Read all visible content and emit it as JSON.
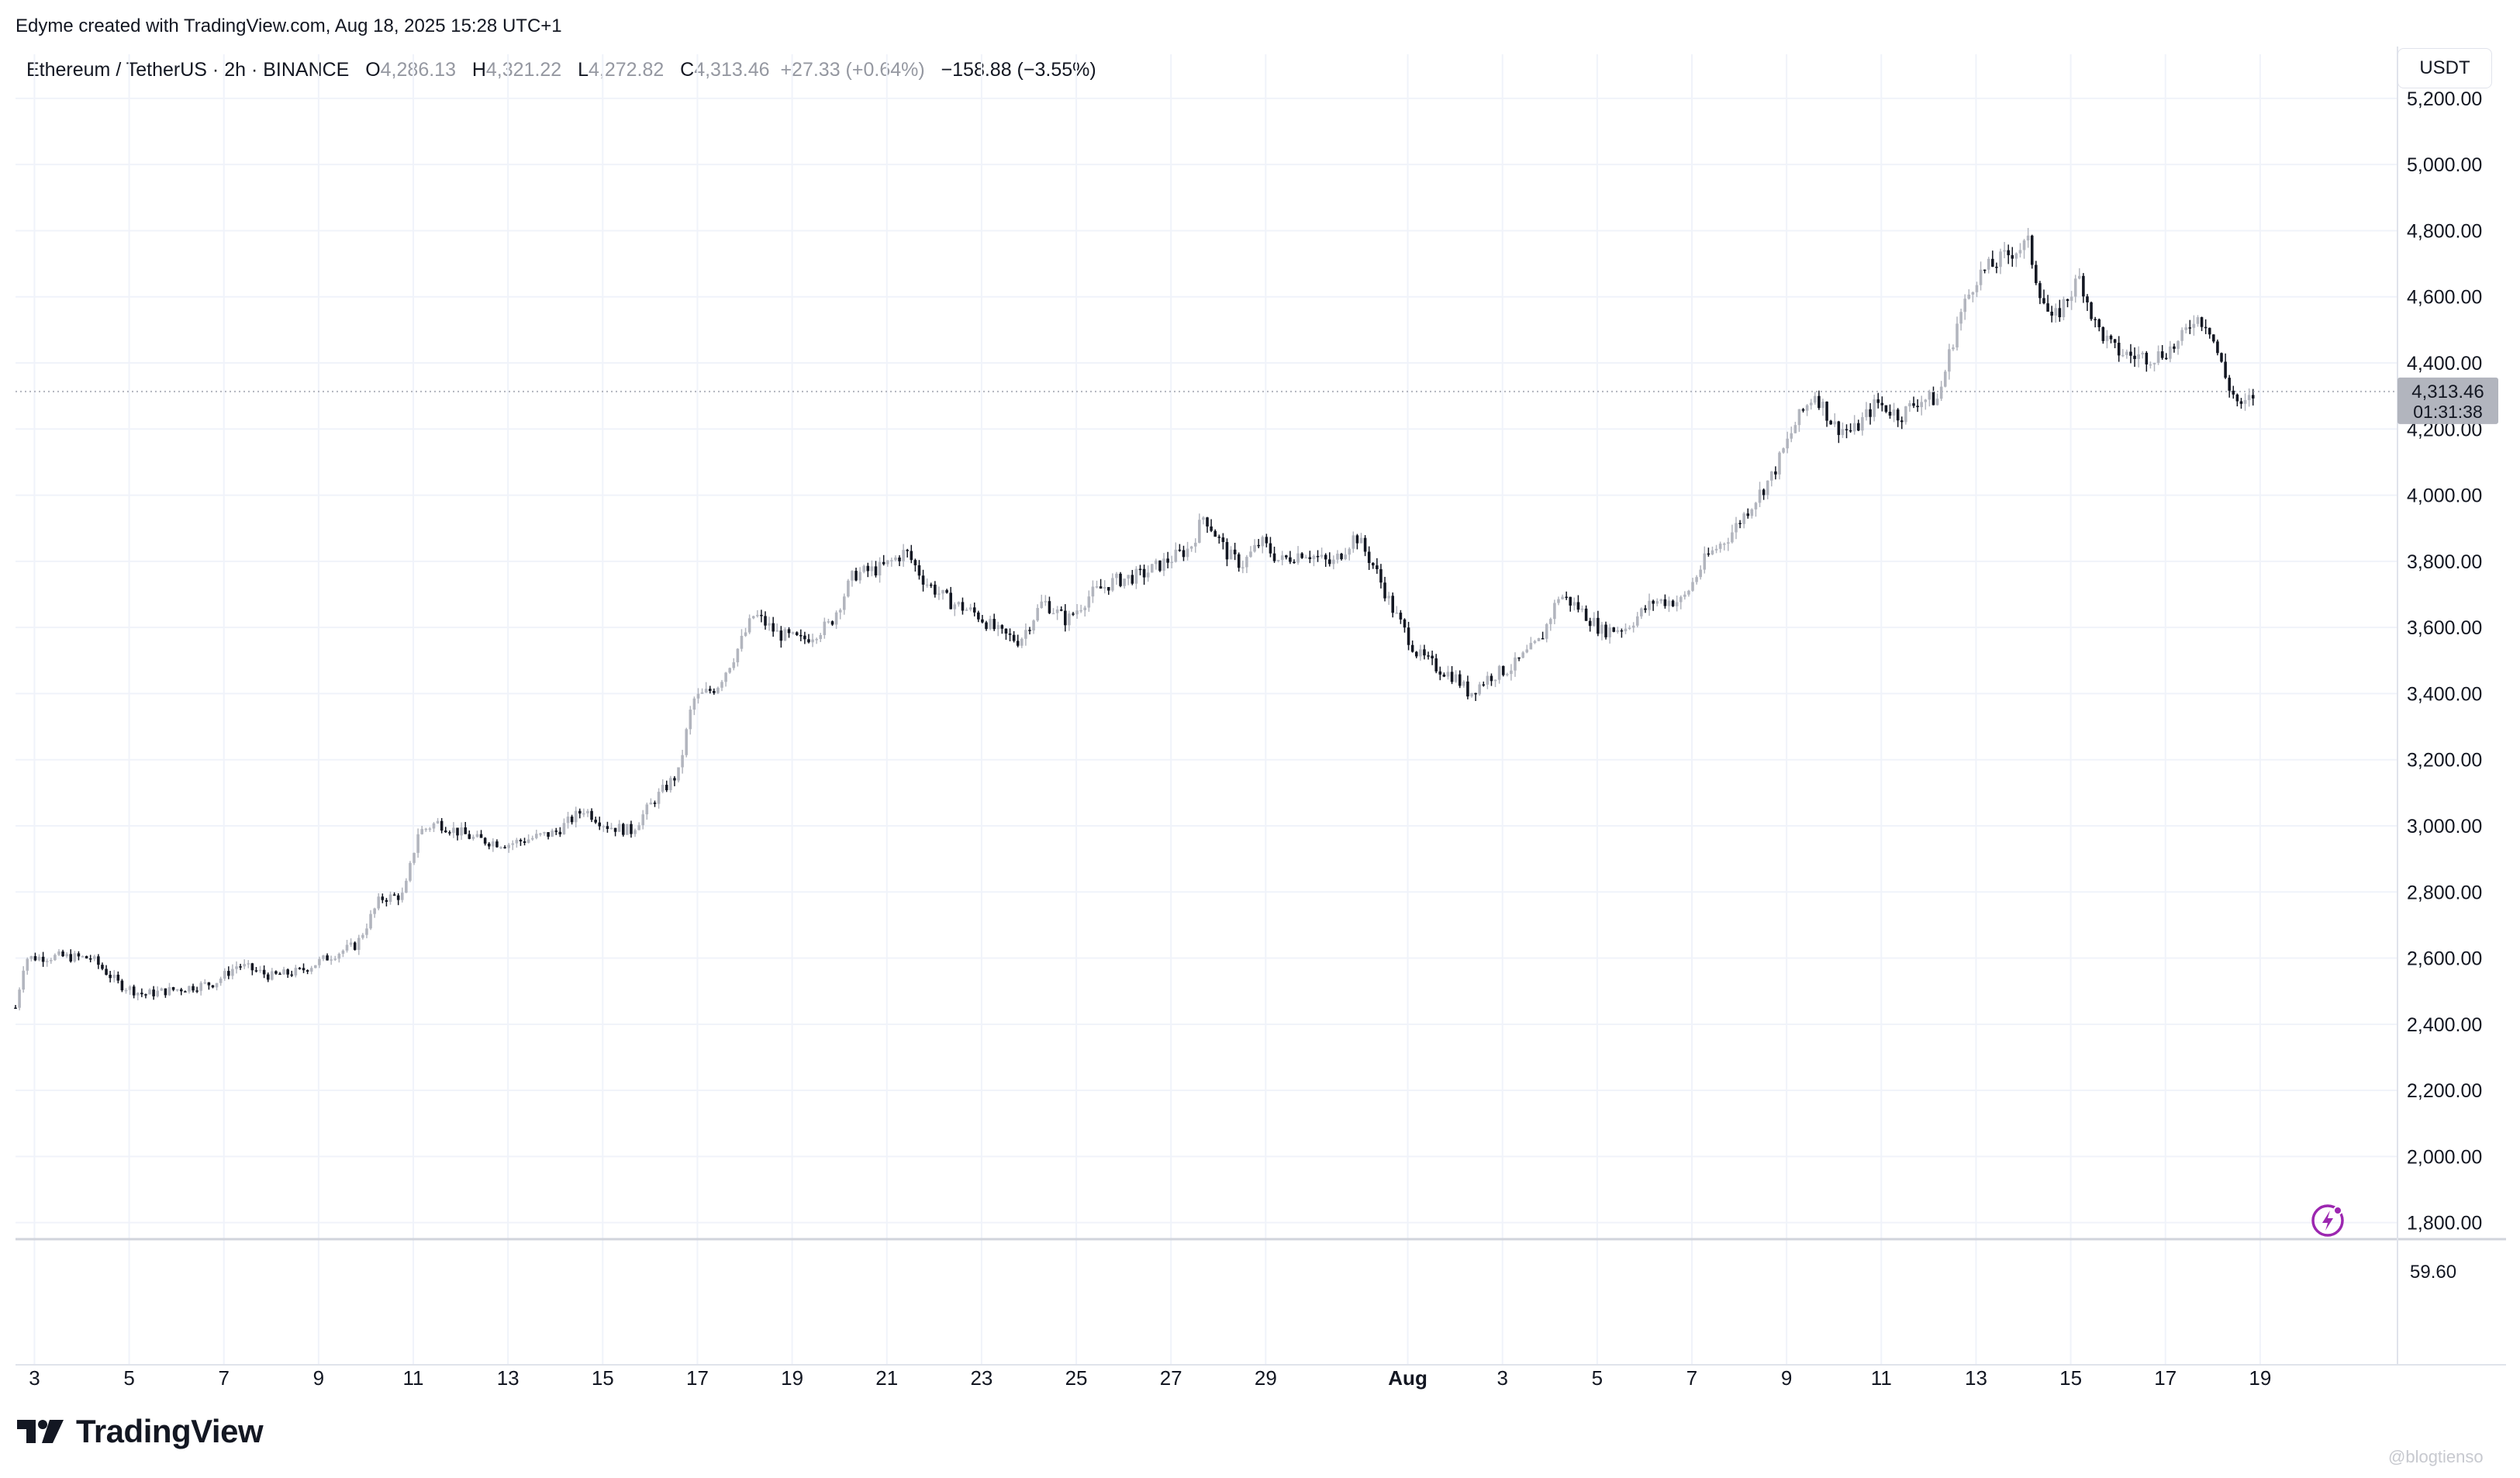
{
  "header": {
    "attribution": "Edyme created with TradingView.com, Aug 18, 2025 15:28 UTC+1"
  },
  "legend": {
    "symbol": "Ethereum / TetherUS · 2h · BINANCE",
    "o_label": "O",
    "o_value": "4,286.13",
    "h_label": "H",
    "h_value": "4,321.22",
    "l_label": "L",
    "l_value": "4,272.82",
    "c_label": "C",
    "c_value": "4,313.46",
    "change": "+27.33 (+0.64%)",
    "volume_change": "−158.88 (−3.55%)"
  },
  "currency_button": "USDT",
  "price_label": {
    "price": "4,313.46",
    "countdown": "01:31:38"
  },
  "branding": {
    "logo_text": "TradingView",
    "watermark": "@blogtienso"
  },
  "colors": {
    "up": "#b2b5be",
    "down": "#131722",
    "grid": "#f0f3fa",
    "price_tag": "#b2b5be",
    "bolt": "#9c27b0"
  },
  "icons": {
    "logo": "tradingview-logo-icon",
    "bolt": "lightning-bolt-icon"
  },
  "chart_data": {
    "type": "candlestick",
    "title": "Ethereum / TetherUS · 2h · BINANCE",
    "ylim": [
      1750,
      5310
    ],
    "y_ticks": [
      "5,200.00",
      "5,000.00",
      "4,800.00",
      "4,600.00",
      "4,400.00",
      "4,200.00",
      "4,000.00",
      "3,800.00",
      "3,600.00",
      "3,400.00",
      "3,200.00",
      "3,000.00",
      "2,800.00",
      "2,600.00",
      "2,400.00",
      "2,200.00",
      "2,000.00",
      "1,800.00"
    ],
    "y_tick_values": [
      5200,
      5000,
      4800,
      4600,
      4400,
      4200,
      4000,
      3800,
      3600,
      3400,
      3200,
      3000,
      2800,
      2600,
      2400,
      2200,
      2000,
      1800
    ],
    "x_ticks": [
      "3",
      "5",
      "7",
      "9",
      "11",
      "13",
      "15",
      "17",
      "19",
      "21",
      "23",
      "25",
      "27",
      "29",
      "Aug",
      "3",
      "5",
      "7",
      "9",
      "11",
      "13",
      "15",
      "17",
      "19"
    ],
    "x_tick_days": [
      3,
      5,
      7,
      9,
      11,
      13,
      15,
      17,
      19,
      21,
      23,
      25,
      27,
      29,
      32,
      34,
      36,
      38,
      40,
      42,
      44,
      46,
      48,
      50
    ],
    "x_tick_bold": [
      false,
      false,
      false,
      false,
      false,
      false,
      false,
      false,
      false,
      false,
      false,
      false,
      false,
      false,
      true,
      false,
      false,
      false,
      false,
      false,
      false,
      false,
      false,
      false
    ],
    "x_domain_days": [
      2.6,
      52.9
    ],
    "last_close": 4313.46,
    "close_path": [
      [
        2.6,
        2450
      ],
      [
        2.8,
        2600
      ],
      [
        3.5,
        2605
      ],
      [
        4.2,
        2600
      ],
      [
        4.8,
        2520
      ],
      [
        5.3,
        2490
      ],
      [
        6.2,
        2510
      ],
      [
        6.8,
        2525
      ],
      [
        7.3,
        2580
      ],
      [
        8.0,
        2545
      ],
      [
        8.6,
        2560
      ],
      [
        9.3,
        2610
      ],
      [
        9.8,
        2640
      ],
      [
        10.3,
        2780
      ],
      [
        10.8,
        2790
      ],
      [
        11.1,
        2980
      ],
      [
        11.5,
        3010
      ],
      [
        12.3,
        2960
      ],
      [
        13.0,
        2945
      ],
      [
        14.0,
        2980
      ],
      [
        14.6,
        3050
      ],
      [
        15.1,
        3000
      ],
      [
        15.6,
        2985
      ],
      [
        16.1,
        3080
      ],
      [
        16.6,
        3160
      ],
      [
        16.9,
        3380
      ],
      [
        17.4,
        3420
      ],
      [
        17.8,
        3520
      ],
      [
        18.2,
        3640
      ],
      [
        18.7,
        3580
      ],
      [
        19.2,
        3560
      ],
      [
        19.8,
        3610
      ],
      [
        20.3,
        3760
      ],
      [
        20.9,
        3780
      ],
      [
        21.4,
        3830
      ],
      [
        21.8,
        3740
      ],
      [
        22.3,
        3680
      ],
      [
        22.9,
        3640
      ],
      [
        23.4,
        3580
      ],
      [
        23.8,
        3560
      ],
      [
        24.3,
        3680
      ],
      [
        24.8,
        3620
      ],
      [
        25.3,
        3700
      ],
      [
        25.8,
        3740
      ],
      [
        26.4,
        3760
      ],
      [
        26.9,
        3800
      ],
      [
        27.4,
        3840
      ],
      [
        27.7,
        3940
      ],
      [
        28.2,
        3820
      ],
      [
        28.5,
        3790
      ],
      [
        28.9,
        3860
      ],
      [
        29.3,
        3800
      ],
      [
        29.8,
        3830
      ],
      [
        30.4,
        3790
      ],
      [
        30.9,
        3880
      ],
      [
        31.3,
        3780
      ],
      [
        31.7,
        3650
      ],
      [
        32.2,
        3520
      ],
      [
        32.6,
        3480
      ],
      [
        33.0,
        3450
      ],
      [
        33.3,
        3400
      ],
      [
        33.7,
        3450
      ],
      [
        34.2,
        3480
      ],
      [
        34.8,
        3560
      ],
      [
        35.2,
        3700
      ],
      [
        35.6,
        3660
      ],
      [
        36.1,
        3590
      ],
      [
        36.6,
        3600
      ],
      [
        37.2,
        3680
      ],
      [
        37.8,
        3680
      ],
      [
        38.3,
        3810
      ],
      [
        38.8,
        3880
      ],
      [
        39.3,
        3980
      ],
      [
        39.7,
        4060
      ],
      [
        40.2,
        4220
      ],
      [
        40.6,
        4310
      ],
      [
        41.0,
        4210
      ],
      [
        41.4,
        4190
      ],
      [
        41.9,
        4280
      ],
      [
        42.4,
        4240
      ],
      [
        42.8,
        4290
      ],
      [
        43.2,
        4290
      ],
      [
        43.6,
        4520
      ],
      [
        44.0,
        4660
      ],
      [
        44.4,
        4700
      ],
      [
        44.8,
        4740
      ],
      [
        45.1,
        4760
      ],
      [
        45.3,
        4640
      ],
      [
        45.6,
        4520
      ],
      [
        45.9,
        4590
      ],
      [
        46.2,
        4660
      ],
      [
        46.5,
        4520
      ],
      [
        46.9,
        4440
      ],
      [
        47.3,
        4420
      ],
      [
        47.8,
        4420
      ],
      [
        48.3,
        4460
      ],
      [
        48.6,
        4540
      ],
      [
        48.9,
        4520
      ],
      [
        49.3,
        4340
      ],
      [
        49.6,
        4260
      ],
      [
        49.9,
        4310
      ]
    ]
  }
}
